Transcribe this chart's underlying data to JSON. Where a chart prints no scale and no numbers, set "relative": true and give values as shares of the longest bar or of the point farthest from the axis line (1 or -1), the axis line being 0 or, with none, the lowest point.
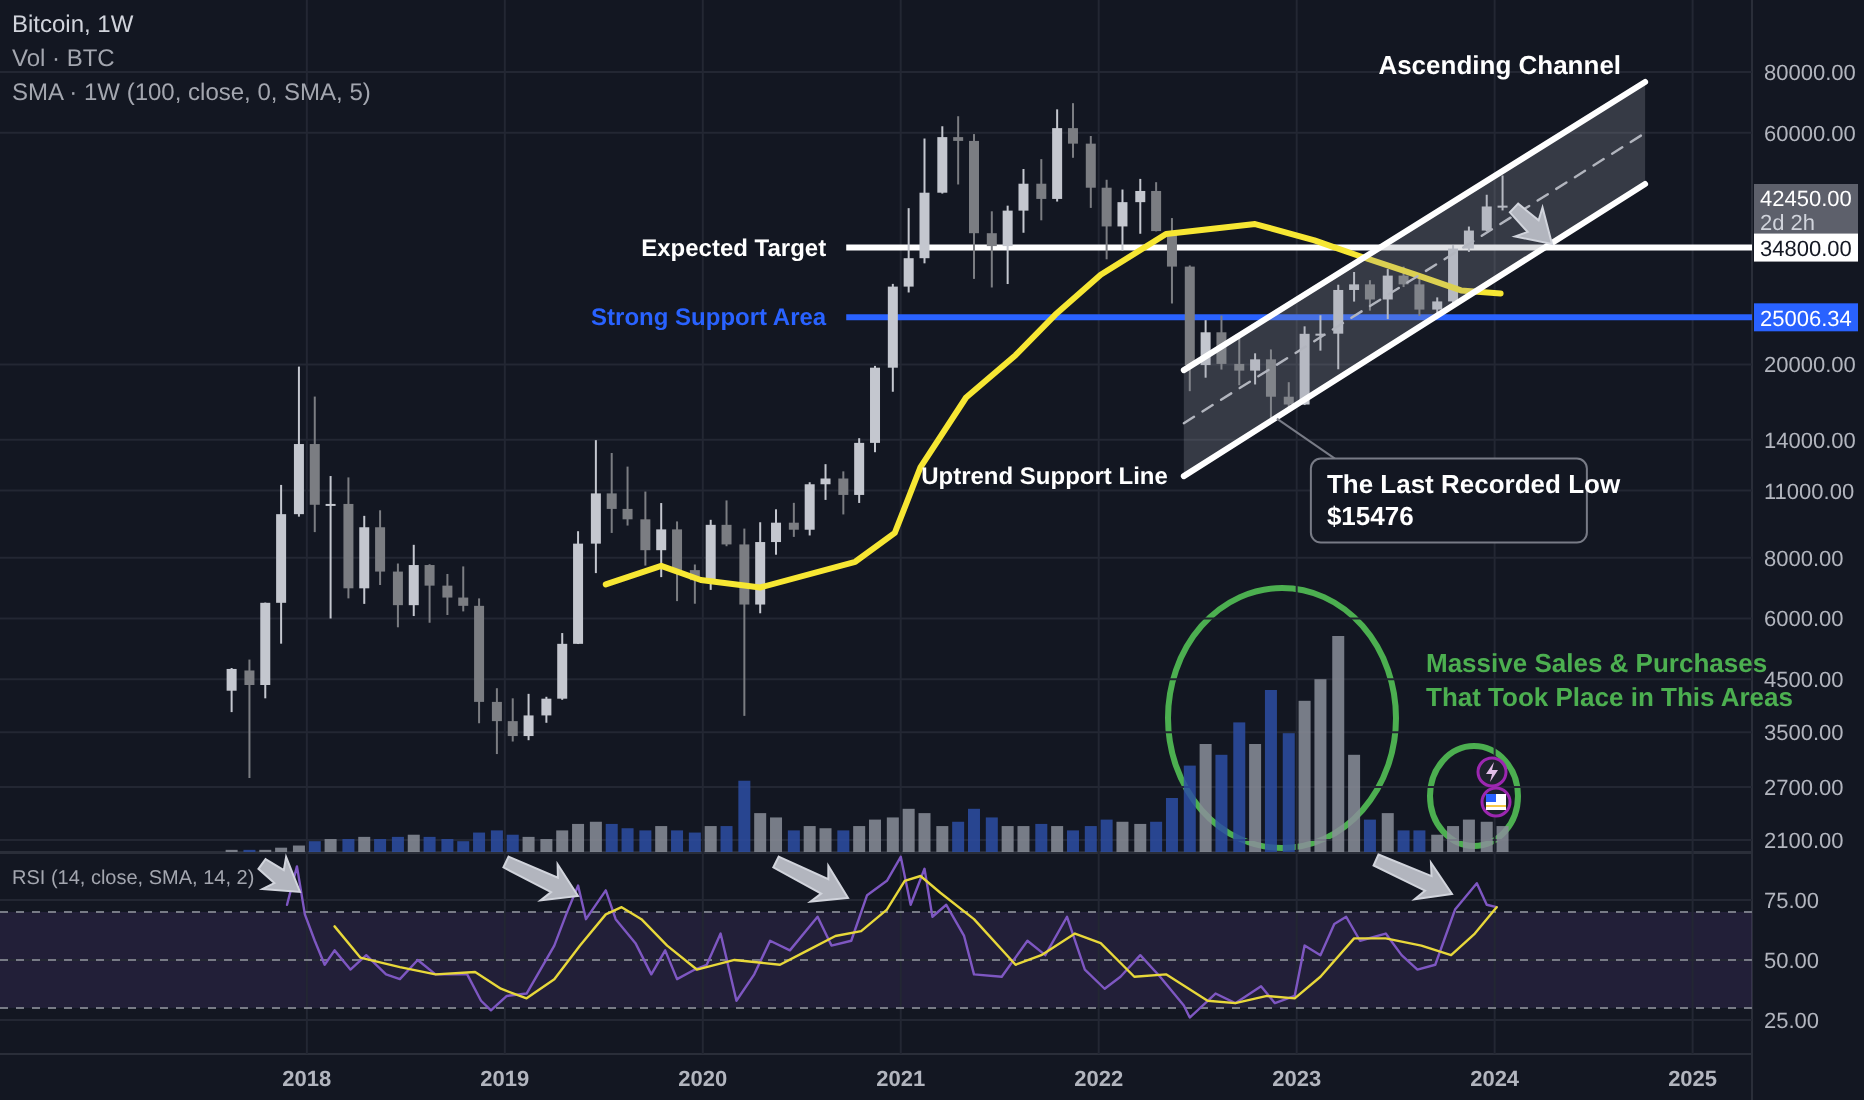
{
  "chart_data": [
    {
      "type": "candlestick",
      "title": "Bitcoin, 1W",
      "subtitle": "SMA · 1W (100, close, 0, SMA, 5)",
      "colors": [
        "#c4c7cf",
        "#7b7d82",
        "#c4c7cf",
        "#c4c7cf",
        "#c4c7cf",
        "#7b7d82",
        "#c4c7cf",
        "#7b7d82",
        "#c4c7cf",
        "#7b7d82",
        "#7b7d82",
        "#c4c7cf",
        "#7b7d82",
        "#7b7d82",
        "#7b7d82",
        "#7b7d82",
        "#7b7d82",
        "#7b7d82",
        "#c4c7cf",
        "#c4c7cf",
        "#c4c7cf",
        "#c4c7cf",
        "#c4c7cf",
        "#7b7d82",
        "#7b7d82",
        "#7b7d82",
        "#c4c7cf",
        "#7b7d82",
        "#7b7d82",
        "#c4c7cf",
        "#7b7d82",
        "#7b7d82",
        "#c4c7cf",
        "#c4c7cf",
        "#7b7d82",
        "#c4c7cf",
        "#c4c7cf",
        "#7b7d82",
        "#c4c7cf",
        "#c4c7cf",
        "#c4c7cf",
        "#c4c7cf",
        "#c4c7cf",
        "#c4c7cf",
        "#7b7d82",
        "#7b7d82",
        "#7b7d82",
        "#c4c7cf",
        "#c4c7cf",
        "#7b7d82",
        "#c4c7cf",
        "#7b7d82",
        "#7b7d82",
        "#7b7d82",
        "#c4c7cf",
        "#c4c7cf",
        "#7b7d82",
        "#7b7d82",
        "#7b7d82",
        "#c4c7cf",
        "#7b7d82",
        "#7b7d82",
        "#c4c7cf",
        "#7b7d82",
        "#7b7d82",
        "#c4c7cf",
        "#c4c7cf",
        "#c4c7cf",
        "#c4c7cf",
        "#7b7d82",
        "#c4c7cf",
        "#7b7d82",
        "#7b7d82",
        "#c4c7cf",
        "#c4c7cf",
        "#c4c7cf",
        "#c4c7cf",
        "#c4c7cf"
      ],
      "log": true,
      "grid": true,
      "tick_labels": "y",
      "xlim": [
        2016.45,
        2025.3
      ],
      "xticks": [
        2018,
        2019,
        2020,
        2021,
        2022,
        2023,
        2024,
        2025
      ],
      "ylim": [
        1984,
        112500
      ],
      "yticks": [
        {
          "value": 80000,
          "label": "80000.00"
        },
        {
          "value": 60000,
          "label": "60000.00"
        },
        {
          "value": 20000,
          "label": "20000.00"
        },
        {
          "value": 14000,
          "label": "14000.00"
        },
        {
          "value": 11000,
          "label": "11000.00"
        },
        {
          "value": 8000,
          "label": "8000.00"
        },
        {
          "value": 6000,
          "label": "6000.00"
        },
        {
          "value": 4500,
          "label": "4500.00"
        },
        {
          "value": 3500,
          "label": "3500.00"
        },
        {
          "value": 2700,
          "label": "2700.00"
        },
        {
          "value": 2100,
          "label": "2100.00"
        }
      ],
      "x": [
        2017.62,
        2017.71,
        2017.79,
        2017.87,
        2017.96,
        2018.04,
        2018.12,
        2018.21,
        2018.29,
        2018.37,
        2018.46,
        2018.54,
        2018.62,
        2018.71,
        2018.79,
        2018.87,
        2018.96,
        2019.04,
        2019.12,
        2019.21,
        2019.29,
        2019.37,
        2019.46,
        2019.54,
        2019.62,
        2019.71,
        2019.79,
        2019.87,
        2019.96,
        2020.04,
        2020.12,
        2020.21,
        2020.29,
        2020.37,
        2020.46,
        2020.54,
        2020.62,
        2020.71,
        2020.79,
        2020.87,
        2020.96,
        2021.04,
        2021.12,
        2021.21,
        2021.29,
        2021.37,
        2021.46,
        2021.54,
        2021.62,
        2021.71,
        2021.79,
        2021.87,
        2021.96,
        2022.04,
        2022.12,
        2022.21,
        2022.29,
        2022.37,
        2022.46,
        2022.54,
        2022.62,
        2022.71,
        2022.79,
        2022.87,
        2022.96,
        2023.04,
        2023.12,
        2023.21,
        2023.29,
        2023.37,
        2023.46,
        2023.54,
        2023.62,
        2023.71,
        2023.79,
        2023.87,
        2023.96,
        2024.04
      ],
      "ohlc": [
        [
          4261,
          4745,
          3850,
          4724
        ],
        [
          4690,
          4939,
          2817,
          4378
        ],
        [
          4378,
          6470,
          4110,
          6463
        ],
        [
          6463,
          11300,
          5325,
          9838
        ],
        [
          9838,
          19798,
          9722,
          13716
        ],
        [
          13716,
          17176,
          9035,
          10285
        ],
        [
          10285,
          11786,
          6000,
          10326
        ],
        [
          10326,
          11710,
          6600,
          6923
        ],
        [
          6922,
          9759,
          6430,
          9246
        ],
        [
          9246,
          10020,
          7032,
          7494
        ],
        [
          7494,
          7786,
          5755,
          6391
        ],
        [
          6391,
          8507,
          6070,
          7730
        ],
        [
          7730,
          7760,
          5880,
          7011
        ],
        [
          7011,
          7410,
          6100,
          6626
        ],
        [
          6626,
          7680,
          6205,
          6371
        ],
        [
          6371,
          6600,
          3652,
          4041
        ],
        [
          4041,
          4312,
          3156,
          3689
        ],
        [
          3689,
          4110,
          3349,
          3437
        ],
        [
          3437,
          4198,
          3370,
          3790
        ],
        [
          3790,
          4140,
          3660,
          4103
        ],
        [
          4103,
          5600,
          4081,
          5321
        ],
        [
          5321,
          9074,
          5316,
          8555
        ],
        [
          8555,
          13970,
          7440,
          10855
        ],
        [
          10855,
          13147,
          9000,
          10085
        ],
        [
          10085,
          12325,
          9320,
          9600
        ],
        [
          9600,
          10950,
          7710,
          8293
        ],
        [
          8293,
          10370,
          7300,
          9153
        ],
        [
          9153,
          9505,
          6515,
          7546
        ],
        [
          7546,
          7750,
          6435,
          7195
        ],
        [
          7195,
          9578,
          6871,
          9352
        ],
        [
          9352,
          10500,
          8450,
          8523
        ],
        [
          8523,
          9188,
          3782,
          6410
        ],
        [
          6410,
          9468,
          6150,
          8620
        ],
        [
          8620,
          10067,
          8117,
          9448
        ],
        [
          9448,
          10380,
          8833,
          9138
        ],
        [
          9138,
          11444,
          8893,
          11335
        ],
        [
          11335,
          12468,
          10525,
          11649
        ],
        [
          11649,
          12050,
          9825,
          10776
        ],
        [
          10776,
          14100,
          10374,
          13791
        ],
        [
          13791,
          19863,
          13195,
          19695
        ],
        [
          19695,
          29300,
          17572,
          28923
        ],
        [
          28923,
          41950,
          28130,
          33092
        ],
        [
          33092,
          58352,
          32296,
          45135
        ],
        [
          45135,
          61844,
          44950,
          58740
        ],
        [
          58740,
          64854,
          46930,
          57694
        ],
        [
          57694,
          59592,
          30000,
          37253
        ],
        [
          37253,
          41330,
          28805,
          35045
        ],
        [
          35045,
          42448,
          29278,
          41461
        ],
        [
          41461,
          50500,
          37332,
          47100
        ],
        [
          47100,
          52920,
          39600,
          43824
        ],
        [
          43824,
          67000,
          43283,
          61299
        ],
        [
          61299,
          69000,
          53256,
          56950
        ],
        [
          56950,
          59053,
          42000,
          46216
        ],
        [
          46216,
          47990,
          32917,
          38466
        ],
        [
          38466,
          45821,
          34322,
          43160
        ],
        [
          43160,
          48189,
          37155,
          45510
        ],
        [
          45510,
          47444,
          37578,
          37630
        ],
        [
          37630,
          40023,
          26700,
          31801
        ],
        [
          31801,
          31982,
          17622,
          19942
        ],
        [
          19942,
          24668,
          18782,
          23293
        ],
        [
          23293,
          25211,
          19520,
          20050
        ],
        [
          20050,
          22799,
          18125,
          19423
        ],
        [
          19423,
          21085,
          18190,
          20491
        ],
        [
          20491,
          21480,
          15476,
          17164
        ],
        [
          17164,
          18387,
          16256,
          16542
        ],
        [
          16542,
          23960,
          16499,
          23125
        ],
        [
          23125,
          25250,
          21351,
          23141
        ],
        [
          23141,
          29184,
          19549,
          28465
        ],
        [
          28465,
          31000,
          26942,
          29233
        ],
        [
          29233,
          29820,
          25811,
          27210
        ],
        [
          27210,
          31431,
          24800,
          30472
        ],
        [
          30472,
          31804,
          28861,
          29232
        ],
        [
          29232,
          30244,
          25166,
          25940
        ],
        [
          25940,
          27483,
          24901,
          26962
        ],
        [
          26962,
          35198,
          26538,
          34639
        ],
        [
          34639,
          38450,
          34097,
          37723
        ],
        [
          37723,
          44700,
          37617,
          42283
        ],
        [
          42283,
          48969,
          41500,
          42450
        ]
      ],
      "series": [
        {
          "type": "line",
          "color": "#f7e733",
          "x": [
            2019.51,
            2019.79,
            2019.99,
            2020.29,
            2020.77,
            2020.97,
            2021.1,
            2021.33,
            2021.58,
            2021.78,
            2022.01,
            2022.34,
            2022.79,
            2023.09,
            2023.32,
            2023.6,
            2023.83,
            2024.03
          ],
          "values": [
            7050,
            7700,
            7200,
            6950,
            7850,
            9000,
            12300,
            17100,
            20900,
            25300,
            30600,
            37100,
            38900,
            36000,
            33400,
            30600,
            28400,
            28000
          ]
        },
        {
          "type": "line",
          "name": "Ascending Channel",
          "color": "#b2b5be",
          "line_style": "dashed",
          "x": [
            2022.43,
            2024.76
          ],
          "values": [
            15140,
            59900
          ],
          "lower": [
            11780,
            47040
          ],
          "upper": [
            19470,
            76300
          ]
        },
        {
          "type": "line",
          "color": "#ffffff",
          "x": [
            2022.43,
            2024.76
          ],
          "values": [
            19470,
            76300
          ]
        },
        {
          "type": "line",
          "name": "Uptrend Support Line",
          "color": "#ffffff",
          "x": [
            2022.43,
            2024.76
          ],
          "values": [
            11780,
            47040
          ]
        }
      ],
      "ref_lines": [
        {
          "axis": "y",
          "value": 34800,
          "label": "Expected Target",
          "color": "#ffffff"
        },
        {
          "axis": "y",
          "value": 25006.34,
          "label": "Strong Support Area",
          "color": "#2962ff"
        }
      ],
      "annotations": [
        {
          "text": "The Last Recorded Low\n$15476",
          "x": 2022.9,
          "y": 15476
        },
        "42450.00",
        "2d 2h",
        "34800.00",
        "25006.34"
      ]
    },
    {
      "type": "bar",
      "title": "Vol · BTC",
      "relative": true,
      "tick_labels": false,
      "xlim": [
        2016.45,
        2025.3
      ],
      "x": [
        2017.62,
        2017.71,
        2017.79,
        2017.87,
        2017.96,
        2018.04,
        2018.12,
        2018.21,
        2018.29,
        2018.37,
        2018.46,
        2018.54,
        2018.62,
        2018.71,
        2018.79,
        2018.87,
        2018.96,
        2019.04,
        2019.12,
        2019.21,
        2019.29,
        2019.37,
        2019.46,
        2019.54,
        2019.62,
        2019.71,
        2019.79,
        2019.87,
        2019.96,
        2020.04,
        2020.12,
        2020.21,
        2020.29,
        2020.37,
        2020.46,
        2020.54,
        2020.62,
        2020.71,
        2020.79,
        2020.87,
        2020.96,
        2021.04,
        2021.12,
        2021.21,
        2021.29,
        2021.37,
        2021.46,
        2021.54,
        2021.62,
        2021.71,
        2021.79,
        2021.87,
        2021.96,
        2022.04,
        2022.12,
        2022.21,
        2022.29,
        2022.37,
        2022.46,
        2022.54,
        2022.62,
        2022.71,
        2022.79,
        2022.87,
        2022.96,
        2023.04,
        2023.12,
        2023.21,
        2023.29,
        2023.37,
        2023.46,
        2023.54,
        2023.62,
        2023.71,
        2023.79,
        2023.87,
        2023.96,
        2024.04
      ],
      "values": [
        0.01,
        0.01,
        0.01,
        0.02,
        0.03,
        0.05,
        0.06,
        0.06,
        0.07,
        0.06,
        0.07,
        0.08,
        0.07,
        0.06,
        0.05,
        0.09,
        0.1,
        0.08,
        0.07,
        0.06,
        0.1,
        0.13,
        0.14,
        0.13,
        0.11,
        0.1,
        0.12,
        0.1,
        0.09,
        0.12,
        0.12,
        0.33,
        0.18,
        0.16,
        0.1,
        0.12,
        0.11,
        0.1,
        0.12,
        0.15,
        0.16,
        0.2,
        0.18,
        0.12,
        0.14,
        0.2,
        0.16,
        0.12,
        0.12,
        0.13,
        0.12,
        0.1,
        0.12,
        0.15,
        0.14,
        0.13,
        0.14,
        0.25,
        0.4,
        0.5,
        0.45,
        0.6,
        0.5,
        0.75,
        0.55,
        0.7,
        0.8,
        1,
        0.45,
        0.15,
        0.18,
        0.1,
        0.1,
        0.08,
        0.12,
        0.15,
        0.14,
        0.12
      ],
      "colors": [
        "#8a8e99",
        "#2d4ea3",
        "#8a8e99",
        "#8a8e99",
        "#8a8e99",
        "#2d4ea3",
        "#8a8e99",
        "#2d4ea3",
        "#8a8e99",
        "#2d4ea3",
        "#2d4ea3",
        "#8a8e99",
        "#2d4ea3",
        "#2d4ea3",
        "#2d4ea3",
        "#2d4ea3",
        "#2d4ea3",
        "#2d4ea3",
        "#8a8e99",
        "#8a8e99",
        "#8a8e99",
        "#8a8e99",
        "#8a8e99",
        "#2d4ea3",
        "#2d4ea3",
        "#2d4ea3",
        "#8a8e99",
        "#2d4ea3",
        "#2d4ea3",
        "#8a8e99",
        "#2d4ea3",
        "#2d4ea3",
        "#8a8e99",
        "#8a8e99",
        "#2d4ea3",
        "#8a8e99",
        "#8a8e99",
        "#2d4ea3",
        "#8a8e99",
        "#8a8e99",
        "#8a8e99",
        "#8a8e99",
        "#8a8e99",
        "#8a8e99",
        "#2d4ea3",
        "#2d4ea3",
        "#2d4ea3",
        "#8a8e99",
        "#8a8e99",
        "#2d4ea3",
        "#8a8e99",
        "#2d4ea3",
        "#2d4ea3",
        "#2d4ea3",
        "#8a8e99",
        "#8a8e99",
        "#2d4ea3",
        "#2d4ea3",
        "#2d4ea3",
        "#8a8e99",
        "#2d4ea3",
        "#2d4ea3",
        "#8a8e99",
        "#2d4ea3",
        "#2d4ea3",
        "#8a8e99",
        "#8a8e99",
        "#8a8e99",
        "#8a8e99",
        "#2d4ea3",
        "#8a8e99",
        "#2d4ea3",
        "#2d4ea3",
        "#8a8e99",
        "#8a8e99",
        "#8a8e99",
        "#8a8e99",
        "#8a8e99"
      ],
      "annotations": [
        "Massive Sales & Purchases\nThat Took Place in This Areas"
      ]
    },
    {
      "type": "line",
      "title": "RSI (14, close, SMA, 14, 2)",
      "grid": true,
      "xlim": [
        2016.45,
        2025.3
      ],
      "xticks": [
        2018,
        2019,
        2020,
        2021,
        2022,
        2023,
        2024,
        2025
      ],
      "ylim": [
        10.8,
        95
      ],
      "yticks": [
        {
          "value": 75,
          "label": "75.00"
        },
        {
          "value": 50,
          "label": "50.00"
        },
        {
          "value": 25,
          "label": "25.00"
        }
      ],
      "series": [
        {
          "color": "#7e57c2",
          "x": [
            2017.9,
            2017.95,
            2017.99,
            2018.04,
            2018.09,
            2018.14,
            2018.22,
            2018.3,
            2018.4,
            2018.47,
            2018.56,
            2018.65,
            2018.81,
            2018.88,
            2018.93,
            2019.01,
            2019.11,
            2019.25,
            2019.31,
            2019.37,
            2019.41,
            2019.51,
            2019.56,
            2019.66,
            2019.74,
            2019.81,
            2019.87,
            2019.96,
            2020.02,
            2020.09,
            2020.17,
            2020.26,
            2020.34,
            2020.44,
            2020.58,
            2020.65,
            2020.75,
            2020.83,
            2020.93,
            2021.0,
            2021.05,
            2021.12,
            2021.16,
            2021.23,
            2021.32,
            2021.37,
            2021.51,
            2021.64,
            2021.73,
            2021.84,
            2021.93,
            2022.03,
            2022.11,
            2022.21,
            2022.31,
            2022.43,
            2022.46,
            2022.59,
            2022.69,
            2022.82,
            2022.89,
            2022.99,
            2023.04,
            2023.12,
            2023.19,
            2023.25,
            2023.32,
            2023.45,
            2023.53,
            2023.61,
            2023.7,
            2023.8,
            2023.91,
            2023.96,
            2024.01
          ],
          "values": [
            73,
            89,
            69,
            58,
            48,
            54,
            46,
            52,
            44,
            42,
            50,
            44,
            44,
            33,
            29,
            35,
            36,
            56,
            69,
            81,
            67,
            79,
            67,
            57,
            44,
            54,
            42,
            46,
            48,
            61,
            33,
            44,
            58,
            54,
            68,
            56,
            58,
            77,
            83,
            93,
            73,
            88,
            68,
            73,
            60,
            44,
            43,
            58,
            52,
            68,
            46,
            38,
            43,
            52,
            43,
            31,
            26,
            36,
            32,
            39,
            32,
            35,
            56,
            52,
            65,
            68,
            58,
            61,
            52,
            46,
            48,
            71,
            82,
            73,
            72
          ]
        },
        {
          "color": "#e8d83a",
          "x": [
            2018.14,
            2018.27,
            2018.47,
            2018.65,
            2018.85,
            2018.98,
            2019.11,
            2019.25,
            2019.38,
            2019.51,
            2019.59,
            2019.69,
            2019.82,
            2019.97,
            2020.16,
            2020.39,
            2020.53,
            2020.67,
            2020.8,
            2020.93,
            2021.02,
            2021.1,
            2021.2,
            2021.37,
            2021.58,
            2021.71,
            2021.88,
            2022.01,
            2022.18,
            2022.34,
            2022.55,
            2022.69,
            2022.85,
            2022.99,
            2023.12,
            2023.29,
            2023.45,
            2023.63,
            2023.78,
            2023.9,
            2024.01
          ],
          "values": [
            64,
            51,
            47,
            44,
            45,
            38,
            34,
            42,
            56,
            69,
            72,
            67,
            56,
            46,
            50,
            48,
            54,
            60,
            62,
            71,
            83,
            85,
            78,
            67,
            48,
            52,
            61,
            57,
            43,
            44,
            33,
            32,
            35,
            34,
            43,
            59,
            59,
            56,
            52,
            61,
            72
          ]
        }
      ],
      "ref_lines": [
        {
          "axis": "y",
          "value": 70,
          "color": "#787b86",
          "line_style": "dashed"
        },
        {
          "axis": "y",
          "value": 50,
          "color": "#787b86",
          "line_style": "dashed"
        },
        {
          "axis": "y",
          "value": 30,
          "color": "#787b86",
          "line_style": "dashed"
        }
      ],
      "bands": [
        {
          "axis": "y",
          "from": 30,
          "to": 70,
          "color": "#7e57c2"
        }
      ]
    }
  ]
}
